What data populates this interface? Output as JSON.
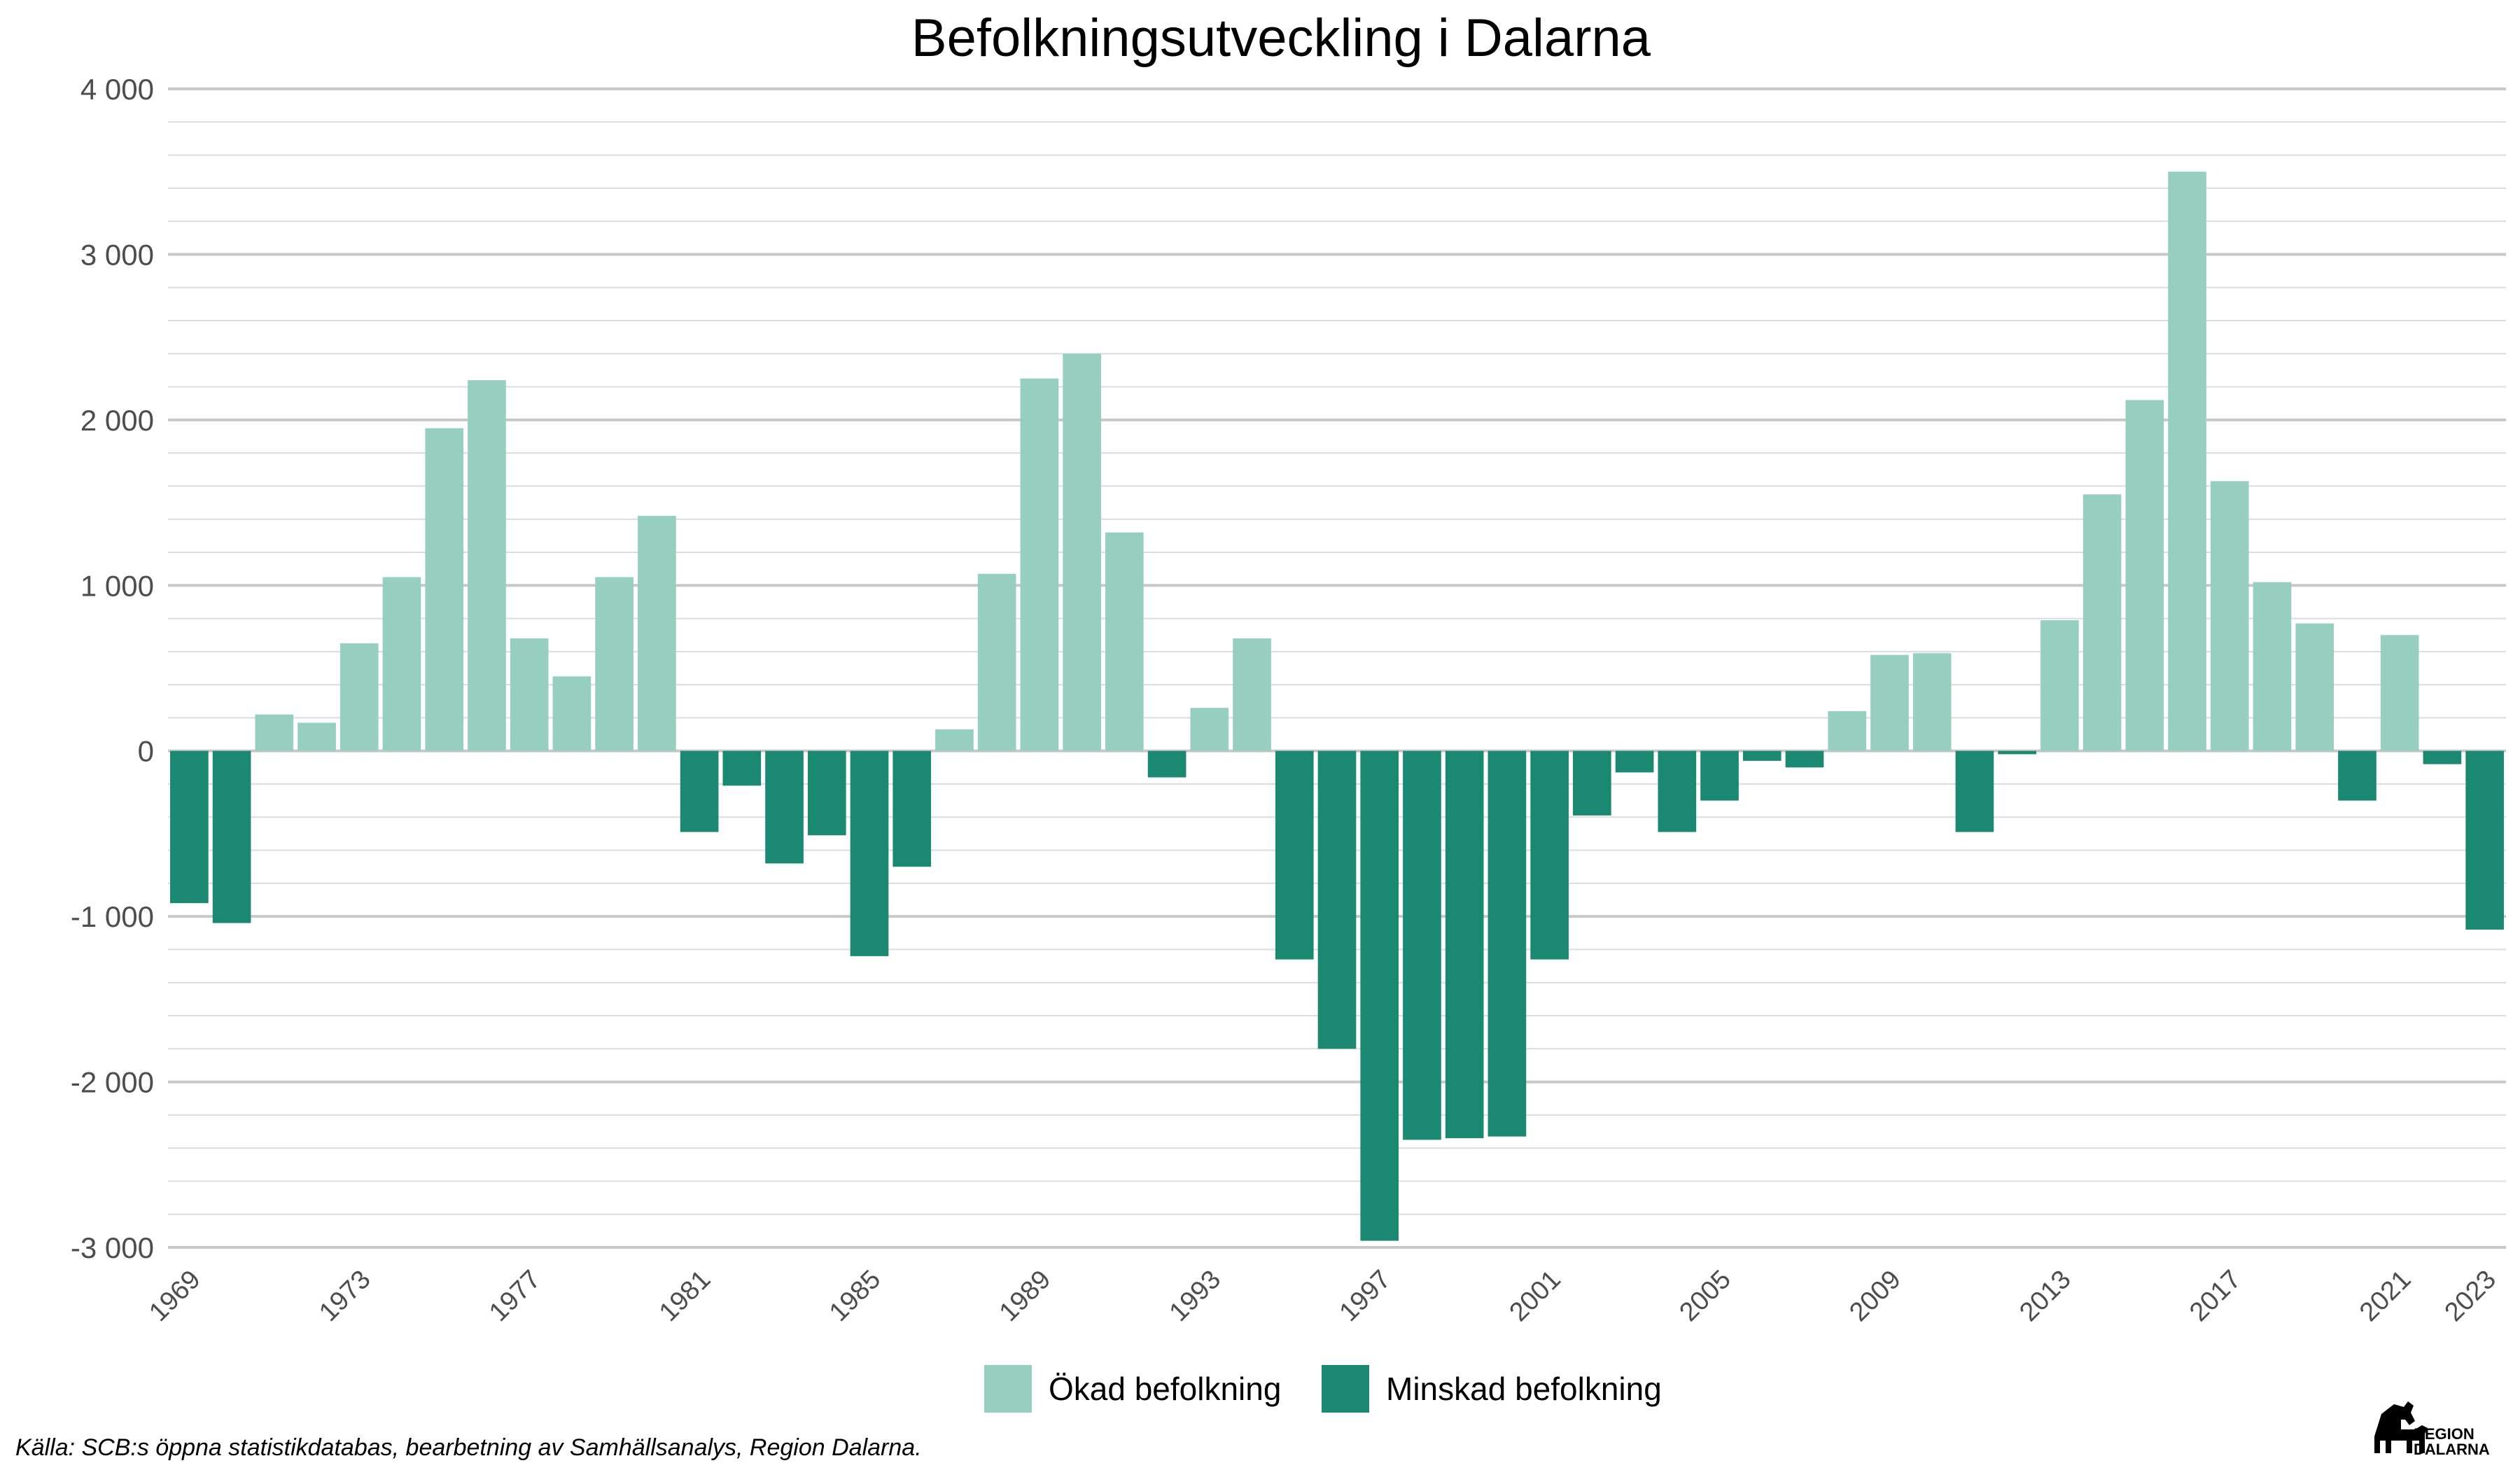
{
  "chart_data": {
    "type": "bar",
    "title": "Befolkningsutveckling i Dalarna",
    "xlabel": "",
    "ylabel": "",
    "ylim": [
      -3000,
      4000
    ],
    "yticks": [
      -3000,
      -2000,
      -1000,
      0,
      1000,
      2000,
      3000,
      4000
    ],
    "ytick_labels": [
      "-3 000",
      "-2 000",
      "-1 000",
      "0",
      "1 000",
      "2 000",
      "3 000",
      "4 000"
    ],
    "xtick_labels": [
      "1969",
      "1973",
      "1977",
      "1981",
      "1985",
      "1989",
      "1993",
      "1997",
      "2001",
      "2005",
      "2009",
      "2013",
      "2017",
      "2021",
      "2023"
    ],
    "grid": true,
    "legend_position": "bottom",
    "years": [
      1969,
      1970,
      1971,
      1972,
      1973,
      1974,
      1975,
      1976,
      1977,
      1978,
      1979,
      1980,
      1981,
      1982,
      1983,
      1984,
      1985,
      1986,
      1987,
      1988,
      1989,
      1990,
      1991,
      1992,
      1993,
      1994,
      1995,
      1996,
      1997,
      1998,
      1999,
      2000,
      2001,
      2002,
      2003,
      2004,
      2005,
      2006,
      2007,
      2008,
      2009,
      2010,
      2011,
      2012,
      2013,
      2014,
      2015,
      2016,
      2017,
      2018,
      2019,
      2020,
      2021,
      2022,
      2023
    ],
    "values": [
      -920,
      -1040,
      220,
      170,
      650,
      1050,
      1950,
      2240,
      680,
      450,
      1050,
      1420,
      -490,
      -210,
      -680,
      -510,
      -1240,
      -700,
      130,
      1070,
      2250,
      2400,
      1320,
      -160,
      260,
      680,
      -1260,
      -1800,
      -2960,
      -2350,
      -2340,
      -2330,
      -1260,
      -390,
      -130,
      -490,
      -300,
      -60,
      -100,
      240,
      580,
      590,
      -490,
      -20,
      790,
      1550,
      2120,
      3500,
      1630,
      1020,
      770,
      -300,
      700,
      -80,
      -1080
    ],
    "series": [
      {
        "name": "Ökad befolkning",
        "color": "#96cfc0"
      },
      {
        "name": "Minskad befolkning",
        "color": "#1b8871"
      }
    ]
  },
  "caption": "Källa: SCB:s öppna statistikdatabas, bearbetning av Samhällsanalys, Region Dalarna.",
  "logo": {
    "line1": "REGION",
    "line2": "DALARNA",
    "icon": "dala-horse-icon"
  }
}
